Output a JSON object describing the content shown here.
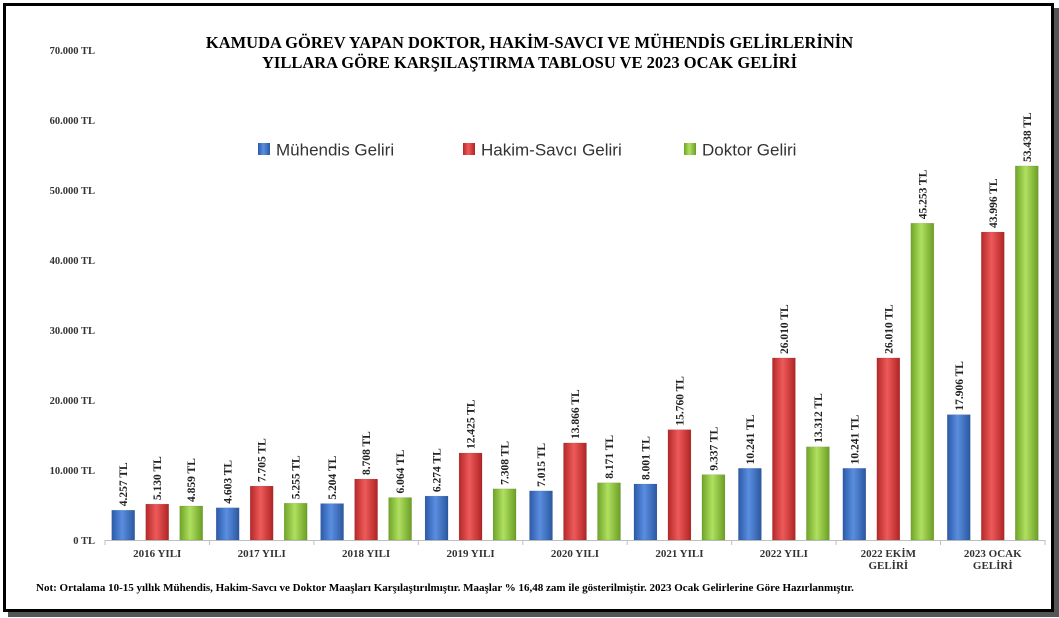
{
  "title_line1": "KAMUDA GÖREV YAPAN DOKTOR, HAKİM-SAVCI VE MÜHENDİS GELİRLERİNİN",
  "title_line2": "YILLARA GÖRE KARŞILAŞTIRMA TABLOSU VE 2023 OCAK GELİRİ",
  "note": "Not: Ortalama 10-15 yıllık Mühendis, Hakim-Savcı ve Doktor Maaşları Karşılaştırılmıştır. Maaşlar % 16,48 zam ile gösterilmiştir. 2023 Ocak Gelirlerine Göre Hazırlanmıştır.",
  "chart_data": {
    "type": "bar",
    "legend_position": "top",
    "grid": false,
    "ylim": [
      0,
      70000
    ],
    "yticks": [
      {
        "value": 0,
        "label": "0 TL"
      },
      {
        "value": 10000,
        "label": "10.000 TL"
      },
      {
        "value": 20000,
        "label": "20.000 TL"
      },
      {
        "value": 30000,
        "label": "30.000 TL"
      },
      {
        "value": 40000,
        "label": "40.000 TL"
      },
      {
        "value": 50000,
        "label": "50.000 TL"
      },
      {
        "value": 60000,
        "label": "60.000 TL"
      },
      {
        "value": 70000,
        "label": "70.000 TL"
      }
    ],
    "categories": [
      "2016 YILI",
      "2017 YILI",
      "2018 YILI",
      "2019 YILI",
      "2020 YILI",
      "2021 YILI",
      "2022 YILI",
      "2022 EKİM GELİRİ",
      "2023 OCAK GELİRİ"
    ],
    "category_lines": [
      [
        "2016 YILI"
      ],
      [
        "2017 YILI"
      ],
      [
        "2018 YILI"
      ],
      [
        "2019 YILI"
      ],
      [
        "2020 YILI"
      ],
      [
        "2021 YILI"
      ],
      [
        "2022 YILI"
      ],
      [
        "2022 EKİM",
        "GELİRİ"
      ],
      [
        "2023 OCAK",
        "GELİRİ"
      ]
    ],
    "series": [
      {
        "name": "Mühendis Geliri",
        "color": "#3a6fc4",
        "values": [
          4257,
          4603,
          5204,
          6274,
          7015,
          8001,
          10241,
          10241,
          17906
        ],
        "labels": [
          "4.257 TL",
          "4.603 TL",
          "5.204 TL",
          "6.274 TL",
          "7.015 TL",
          "8.001 TL",
          "10.241 TL",
          "10.241 TL",
          "17.906 TL"
        ]
      },
      {
        "name": "Hakim-Savcı Geliri",
        "color": "#d43c3c",
        "values": [
          5130,
          7705,
          8708,
          12425,
          13866,
          15760,
          26010,
          26010,
          43996
        ],
        "labels": [
          "5.130 TL",
          "7.705 TL",
          "8.708 TL",
          "12.425 TL",
          "13.866 TL",
          "15.760 TL",
          "26.010 TL",
          "26.010 TL",
          "43.996 TL"
        ]
      },
      {
        "name": "Doktor Geliri",
        "color": "#8cc63a",
        "values": [
          4859,
          5255,
          6064,
          7308,
          8171,
          9337,
          13312,
          45253,
          53438
        ],
        "labels": [
          "4.859 TL",
          "5.255 TL",
          "6.064 TL",
          "7.308 TL",
          "8.171 TL",
          "9.337 TL",
          "13.312 TL",
          "45.253 TL",
          "53.438 TL"
        ]
      }
    ]
  }
}
